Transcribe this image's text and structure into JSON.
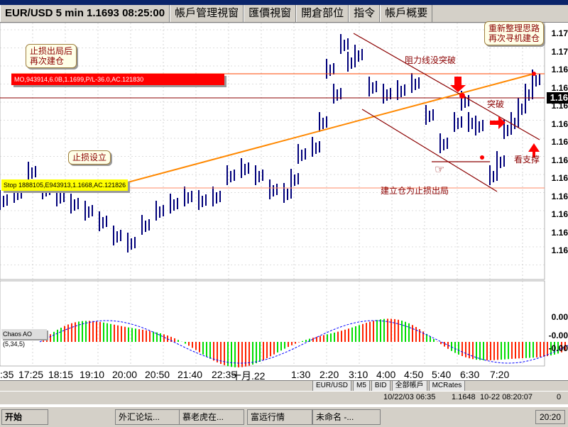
{
  "window": {
    "tabs": [
      "EUR/USD 5 min 1.1693 08:25:00",
      "帳戶管理視窗",
      "匯價視窗",
      "開倉部位",
      "指令",
      "帳戶概要"
    ]
  },
  "chart": {
    "y_ticks": [
      "1.17",
      "1.17",
      "1.16",
      "1.16",
      "1.16",
      "1.16",
      "1.16",
      "1.16",
      "1.16",
      "1.16",
      "1.16",
      "1.16",
      "1.16"
    ],
    "current_price_tag": "1.16",
    "ao_ticks": [
      "0.00",
      "-0.00",
      "-0.00"
    ],
    "x_ticks": [
      ":35",
      "17:25",
      "18:15",
      "19:10",
      "20:00",
      "20:50",
      "21:40",
      "22:35",
      "十月.22",
      "1:30",
      "2:20",
      "3:10",
      "4:00",
      "4:50",
      "5:40",
      "6:30",
      "7:20"
    ]
  },
  "chart_data": {
    "type": "candlestick",
    "title": "EUR/USD 5 min 1.1693 08:25:00",
    "indicator": "Chaos AO (5,34,5)"
  },
  "overlays": {
    "red_order": "MO,943914,6.0B,1.1699,P/L-36.0,AC.121830",
    "yellow_stop": "Stop 1888105,E943913,1.1668,AC.121826",
    "callout_stoploss_reenter": "止损出局后\n再次建仓",
    "callout_set_stop": "止损设立",
    "callout_reorganize": "重新整理思路\n再次寻机建仓",
    "text_resistance_break": "阻力线没突破",
    "text_breakthrough": "突破",
    "text_support": "看支撑",
    "text_stopped_out": "建立仓为止损出局",
    "chaos_label": "Chaos AO (5,34,5)"
  },
  "bottom_toolbar": [
    "EUR/USD",
    "M5",
    "BID",
    "全部帳戶",
    "MCRates"
  ],
  "status_bar": {
    "date_time": "10/22/03 06:35",
    "price": "1.1648",
    "right_time": "10-22 08:20:07",
    "right_value": "0"
  },
  "taskbar": {
    "start": "开始",
    "tasks": [
      "外汇论坛...",
      "慕老虎在...",
      "富远行情",
      "未命名 -..."
    ],
    "clock": "20:20"
  },
  "colors": {
    "red": "#ff0000",
    "green": "#00dd00",
    "candle": "#00007a",
    "annot": "#8b0000"
  }
}
